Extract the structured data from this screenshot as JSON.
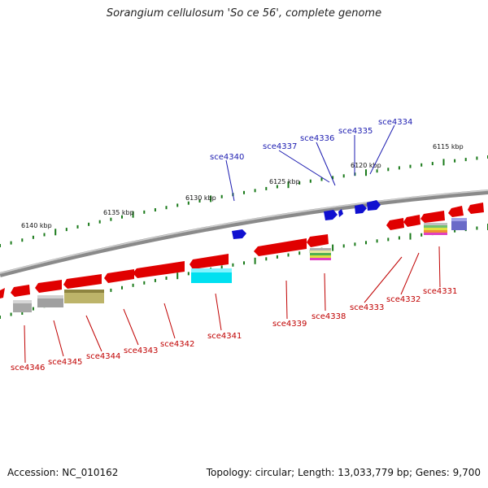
{
  "title": "Sorangium cellulosum 'So ce 56', complete genome",
  "accession": "Accession: NC_010162",
  "summary": "Topology: circular; Length: 13,033,779 bp; Genes: 9,700",
  "colors": {
    "backbone": "#8a8a8a",
    "tick": "#1a7a1a",
    "forward_gene": "#1010d0",
    "reverse_gene": "#e00000",
    "top_label": "#1b1bb0",
    "bottom_label": "#c00000"
  },
  "kbp_labels": [
    "6115 kbp",
    "6120 kbp",
    "6125 kbp",
    "6130 kbp",
    "6135 kbp",
    "6140 kbp"
  ],
  "genes_top": [
    "sce4334",
    "sce4335",
    "sce4336",
    "sce4337",
    "sce4340"
  ],
  "genes_bottom": [
    "sce4331",
    "sce4332",
    "sce4333",
    "sce4338",
    "sce4339",
    "sce4341",
    "sce4342",
    "sce4343",
    "sce4344",
    "sce4345",
    "sce4346"
  ]
}
